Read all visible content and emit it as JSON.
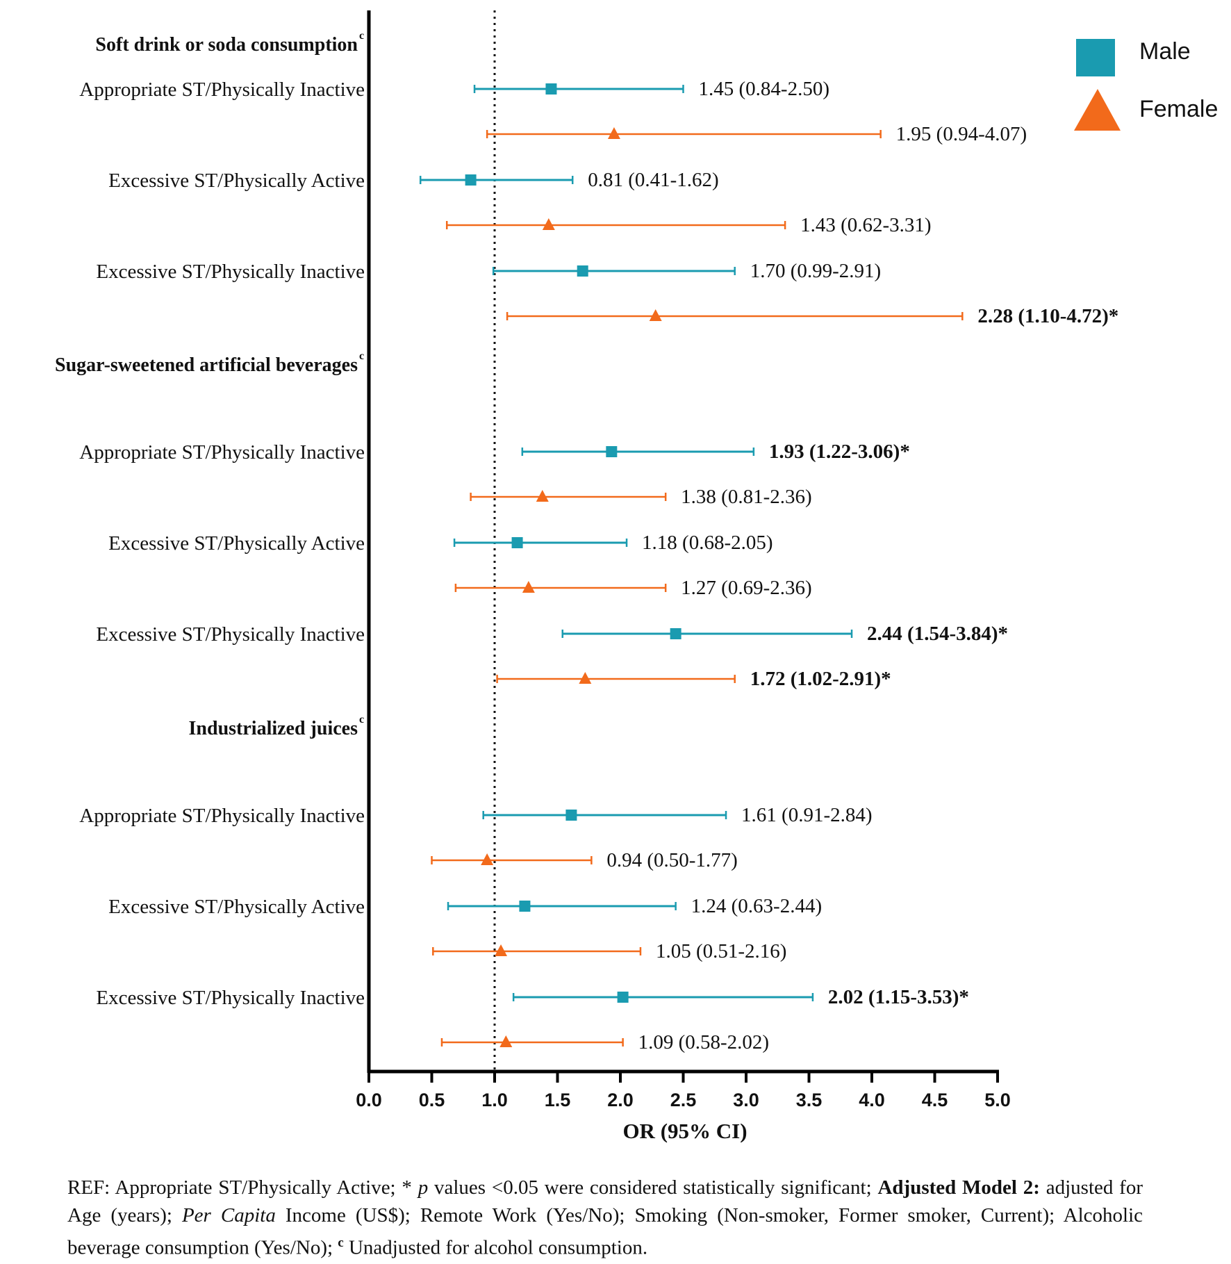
{
  "chart_data": {
    "type": "forest",
    "xlabel": "OR (95% CI)",
    "xlim": [
      0.0,
      5.0
    ],
    "xticks": [
      "0.0",
      "0.5",
      "1.0",
      "1.5",
      "2.0",
      "2.5",
      "3.0",
      "3.5",
      "4.0",
      "4.5",
      "5.0"
    ],
    "reference_line": 1.0,
    "legend": {
      "position": "top-right",
      "items": [
        {
          "name": "Male",
          "marker": "square",
          "color": "#1a9bb0"
        },
        {
          "name": "Female",
          "marker": "triangle",
          "color": "#f26a1b"
        }
      ]
    },
    "groups": [
      {
        "title": "Soft drink or soda consumption",
        "superscript": "c",
        "rows": [
          {
            "label": "Appropriate ST/Physically Inactive",
            "male": {
              "or": 1.45,
              "lo": 0.84,
              "hi": 2.5,
              "text": "1.45 (0.84-2.50)",
              "significant": false
            },
            "female": {
              "or": 1.95,
              "lo": 0.94,
              "hi": 4.07,
              "text": "1.95 (0.94-4.07)",
              "significant": false
            }
          },
          {
            "label": "Excessive ST/Physically Active",
            "male": {
              "or": 0.81,
              "lo": 0.41,
              "hi": 1.62,
              "text": "0.81 (0.41-1.62)",
              "significant": false
            },
            "female": {
              "or": 1.43,
              "lo": 0.62,
              "hi": 3.31,
              "text": "1.43 (0.62-3.31)",
              "significant": false
            }
          },
          {
            "label": "Excessive ST/Physically Inactive",
            "male": {
              "or": 1.7,
              "lo": 0.99,
              "hi": 2.91,
              "text": "1.70 (0.99-2.91)",
              "significant": false
            },
            "female": {
              "or": 2.28,
              "lo": 1.1,
              "hi": 4.72,
              "text": "2.28 (1.10-4.72)*",
              "significant": true
            }
          }
        ]
      },
      {
        "title": "Sugar-sweetened artificial beverages",
        "superscript": "c",
        "rows": [
          {
            "label": "Appropriate ST/Physically Inactive",
            "male": {
              "or": 1.93,
              "lo": 1.22,
              "hi": 3.06,
              "text": "1.93 (1.22-3.06)*",
              "significant": true
            },
            "female": {
              "or": 1.38,
              "lo": 0.81,
              "hi": 2.36,
              "text": "1.38 (0.81-2.36)",
              "significant": false
            }
          },
          {
            "label": "Excessive ST/Physically Active",
            "male": {
              "or": 1.18,
              "lo": 0.68,
              "hi": 2.05,
              "text": "1.18 (0.68-2.05)",
              "significant": false
            },
            "female": {
              "or": 1.27,
              "lo": 0.69,
              "hi": 2.36,
              "text": "1.27 (0.69-2.36)",
              "significant": false
            }
          },
          {
            "label": "Excessive ST/Physically Inactive",
            "male": {
              "or": 2.44,
              "lo": 1.54,
              "hi": 3.84,
              "text": "2.44 (1.54-3.84)*",
              "significant": true
            },
            "female": {
              "or": 1.72,
              "lo": 1.02,
              "hi": 2.91,
              "text": "1.72 (1.02-2.91)*",
              "significant": true
            }
          }
        ]
      },
      {
        "title": "Industrialized juices",
        "superscript": "c",
        "rows": [
          {
            "label": "Appropriate ST/Physically Inactive",
            "male": {
              "or": 1.61,
              "lo": 0.91,
              "hi": 2.84,
              "text": "1.61 (0.91-2.84)",
              "significant": false
            },
            "female": {
              "or": 0.94,
              "lo": 0.5,
              "hi": 1.77,
              "text": "0.94 (0.50-1.77)",
              "significant": false
            }
          },
          {
            "label": "Excessive ST/Physically Active",
            "male": {
              "or": 1.24,
              "lo": 0.63,
              "hi": 2.44,
              "text": "1.24 (0.63-2.44)",
              "significant": false
            },
            "female": {
              "or": 1.05,
              "lo": 0.51,
              "hi": 2.16,
              "text": "1.05 (0.51-2.16)",
              "significant": false
            }
          },
          {
            "label": "Excessive ST/Physically Inactive",
            "male": {
              "or": 2.02,
              "lo": 1.15,
              "hi": 3.53,
              "text": "2.02 (1.15-3.53)*",
              "significant": true
            },
            "female": {
              "or": 1.09,
              "lo": 0.58,
              "hi": 2.02,
              "text": "1.09 (0.58-2.02)",
              "significant": false
            }
          }
        ]
      }
    ]
  },
  "footnote": {
    "ref_text": "REF: Appropriate ST/Physically Active; * ",
    "p_text": "p",
    "sig_text": " values <0.05 were considered statistically significant; ",
    "model_label": "Adjusted Model 2:",
    "adjusted_text": " adjusted for Age (years); ",
    "per_capita": "Per Capita",
    "income_text": " Income (US$); Remote Work (Yes/No); Smoking (Non-smoker, Former smoker, Current); Alcoholic beverage consumption (Yes/No); ",
    "c_mark": "c",
    "unadjusted_text": " Unadjusted for alcohol consumption."
  }
}
